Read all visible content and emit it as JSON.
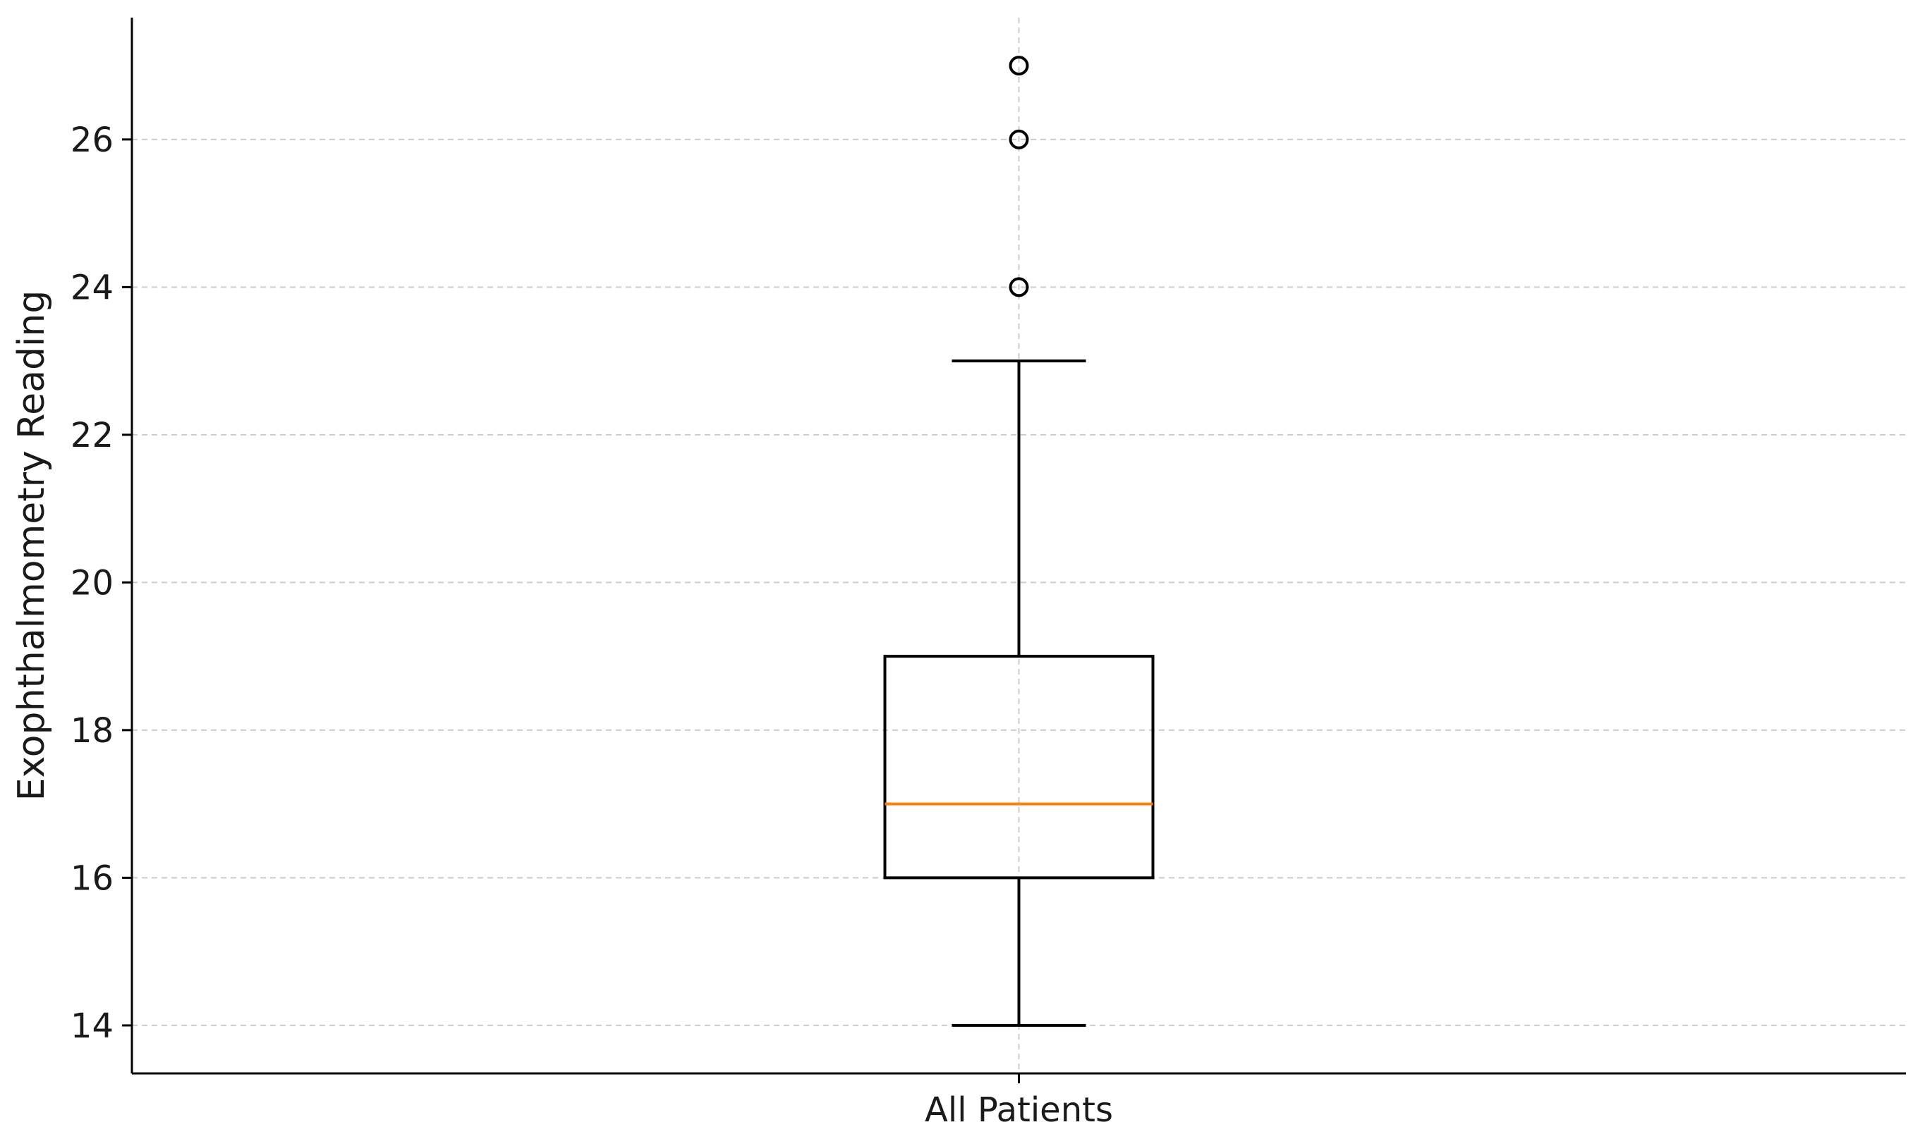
{
  "chart_data": {
    "type": "box",
    "title": "",
    "xlabel": "",
    "ylabel": "Exophthalmometry Reading",
    "ylim": [
      13.35,
      27.65
    ],
    "yticks": [
      14,
      16,
      18,
      20,
      22,
      24,
      26
    ],
    "grid": true,
    "categories": [
      "All Patients"
    ],
    "series": [
      {
        "category": "All Patients",
        "whisker_low": 14,
        "q1": 16,
        "median": 17,
        "q3": 19,
        "whisker_high": 23,
        "outliers": [
          24,
          26,
          27
        ]
      }
    ],
    "colors": {
      "box": "#000000",
      "median": "#ff7f0e",
      "grid": "#cccccc",
      "axis": "#000000"
    }
  }
}
